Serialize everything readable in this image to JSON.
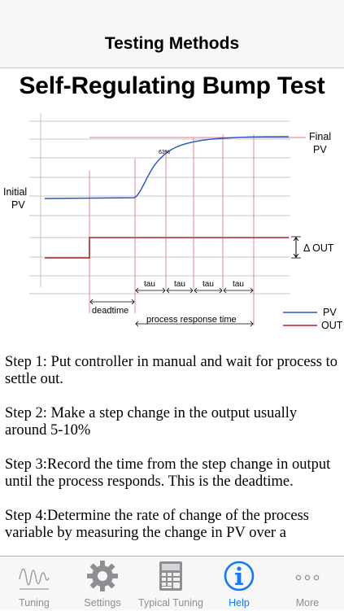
{
  "nav": {
    "title": "Testing Methods"
  },
  "page": {
    "heading": "Self-Regulating Bump Test"
  },
  "diagram": {
    "initial_pv": [
      "Initial",
      "PV"
    ],
    "final_pv": [
      "Final",
      "PV"
    ],
    "pct_label": "63%",
    "delta_out": "Δ OUT",
    "tau_label": "tau",
    "deadtime_label": "deadtime",
    "response_label": "process response time",
    "legend": {
      "pv": "PV",
      "out": "OUT"
    },
    "colors": {
      "pv": "#2a57c9",
      "out": "#b22424",
      "marker": "#e07a86",
      "grid": "#999999"
    }
  },
  "steps": [
    "Step 1: Put controller in manual and wait for process to settle out.",
    "Step 2: Make a step change in the output usually around 5-10%",
    "Step 3:Record the time from the step change in output until the process responds.  This is the deadtime.",
    "Step 4:Determine the rate of change of the process variable by measuring the change in PV over a"
  ],
  "tabs": [
    {
      "label": "Tuning",
      "icon": "waveform-icon",
      "active": false
    },
    {
      "label": "Settings",
      "icon": "gear-icon",
      "active": false
    },
    {
      "label": "Typical Tuning",
      "icon": "calculator-icon",
      "active": false
    },
    {
      "label": "Help",
      "icon": "info-icon",
      "active": true
    },
    {
      "label": "More",
      "icon": "more-dots-icon",
      "active": false
    }
  ]
}
